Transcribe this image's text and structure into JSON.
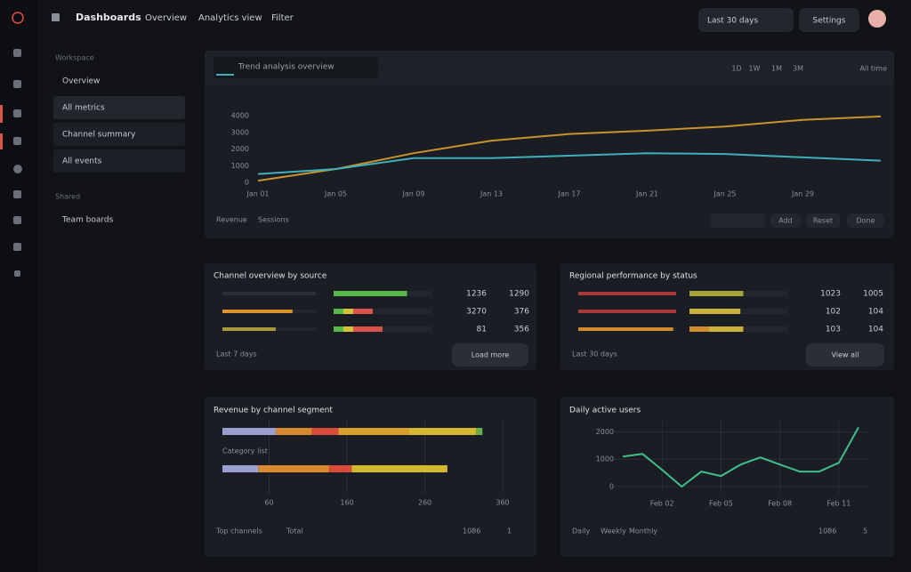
{
  "header": {
    "brand": "Dashboards",
    "nav": [
      "Overview",
      "Analytics view",
      "Filter"
    ],
    "actions": [
      "Last 30 days",
      "Settings"
    ]
  },
  "sidebar": {
    "sections": [
      {
        "title": "Workspace",
        "items": [
          "Overview",
          "All metrics",
          "Channel summary",
          "All events"
        ]
      },
      {
        "title": "Shared",
        "items": [
          "Team boards"
        ]
      }
    ]
  },
  "trend": {
    "tab": "Trend analysis overview",
    "ranges": [
      "1D",
      "1W",
      "1M",
      "3M",
      "All time"
    ],
    "buttons": [
      "Add",
      "Reset",
      "Done"
    ],
    "chart_data": {
      "type": "line",
      "x": [
        "Jan 01",
        "Jan 05",
        "Jan 09",
        "Jan 13",
        "Jan 17",
        "Jan 21",
        "Jan 25",
        "Jan 29",
        null
      ],
      "ylim": [
        0,
        4000
      ],
      "yticks": [
        0,
        1000,
        2000,
        3000,
        4000
      ],
      "series": [
        {
          "name": "Revenue",
          "color": "#c8932e",
          "values": [
            100,
            800,
            1750,
            2500,
            2900,
            3100,
            3350,
            3750,
            3950
          ]
        },
        {
          "name": "Sessions",
          "color": "#3fb0bb",
          "values": [
            500,
            800,
            1450,
            1450,
            1600,
            1750,
            1700,
            1500,
            1300
          ]
        }
      ]
    }
  },
  "sources": {
    "title": "Channel overview by source",
    "footer": "Last 7 days",
    "button": "Load more",
    "xlim": [
      0,
      100
    ],
    "rows": [
      {
        "bar": 100,
        "bar_color": "#2a2e35",
        "segments": [
          {
            "value": 75,
            "color": "#58b84a"
          }
        ],
        "count": 1236,
        "total": 1290
      },
      {
        "bar": 75,
        "bar_color": "#e0922e",
        "segments": [
          {
            "value": 10,
            "color": "#58b84a"
          },
          {
            "value": 10,
            "color": "#d4c23a"
          },
          {
            "value": 20,
            "color": "#d9534a"
          }
        ],
        "count": 3270,
        "total": 376
      },
      {
        "bar": 57,
        "bar_color": "#a89a3a",
        "segments": [
          {
            "value": 10,
            "color": "#58b84a"
          },
          {
            "value": 10,
            "color": "#d4c23a"
          },
          {
            "value": 30,
            "color": "#d9534a"
          }
        ],
        "count": 81,
        "total": 356
      }
    ]
  },
  "regions": {
    "title": "Regional performance by status",
    "footer": "Last 30 days",
    "button": "View all",
    "xlim": [
      0,
      100
    ],
    "rows": [
      {
        "bar": 100,
        "bar_color": "#a83a35",
        "segments": [
          {
            "value": 55,
            "color": "#a8a23a"
          }
        ],
        "count": 1023,
        "total": 1005
      },
      {
        "bar": 100,
        "bar_color": "#a83a35",
        "segments": [
          {
            "value": 52,
            "color": "#c8b23a"
          }
        ],
        "count": 102,
        "total": 104
      },
      {
        "bar": 97,
        "bar_color": "#d08a30",
        "segments": [
          {
            "value": 20,
            "color": "#d08a30"
          },
          {
            "value": 35,
            "color": "#c8b23a"
          }
        ],
        "count": 103,
        "total": 104
      }
    ]
  },
  "channels": {
    "title": "Revenue by channel segment",
    "footer": [
      "Top channels",
      "Total"
    ],
    "footer_right": [
      "1086",
      "1"
    ],
    "chart_data": {
      "type": "bar",
      "categories": [
        null,
        "Category list"
      ],
      "xlim": [
        0,
        360
      ],
      "xticks": [
        60,
        160,
        260,
        360
      ],
      "series": [
        {
          "color": "#9a9fd0",
          "values": [
            69,
            46
          ]
        },
        {
          "color": "#d98a2e",
          "values": [
            46,
            91
          ]
        },
        {
          "color": "#d94a3a",
          "values": [
            34,
            29
          ]
        },
        {
          "color": "#d9a02e",
          "values": [
            91,
            0
          ]
        },
        {
          "color": "#d6b830",
          "values": [
            86,
            123
          ]
        },
        {
          "color": "#6ab04a",
          "values": [
            8,
            0
          ]
        }
      ]
    }
  },
  "activity": {
    "title": "Daily active users",
    "footer": [
      "Daily",
      "Weekly",
      "Monthly"
    ],
    "footer_right": [
      "1086",
      "5"
    ],
    "chart_data": {
      "type": "line",
      "x": [
        0,
        1,
        2,
        3,
        4,
        5,
        6,
        7,
        8,
        9,
        10,
        11,
        12
      ],
      "xlim": [
        0,
        12
      ],
      "xticks": [
        {
          "value": 2,
          "label": "Feb 02"
        },
        {
          "value": 5,
          "label": "Feb 05"
        },
        {
          "value": 8,
          "label": "Feb 08"
        },
        {
          "value": 11,
          "label": "Feb 11"
        }
      ],
      "ylim": [
        0,
        2500
      ],
      "yticks": [
        0,
        1000,
        2000
      ],
      "series": [
        {
          "color": "#3fbf8a",
          "values": [
            1097,
            1194,
            613,
            0,
            548,
            387,
            806,
            1065,
            806,
            548,
            548,
            871,
            2161
          ]
        }
      ]
    }
  }
}
